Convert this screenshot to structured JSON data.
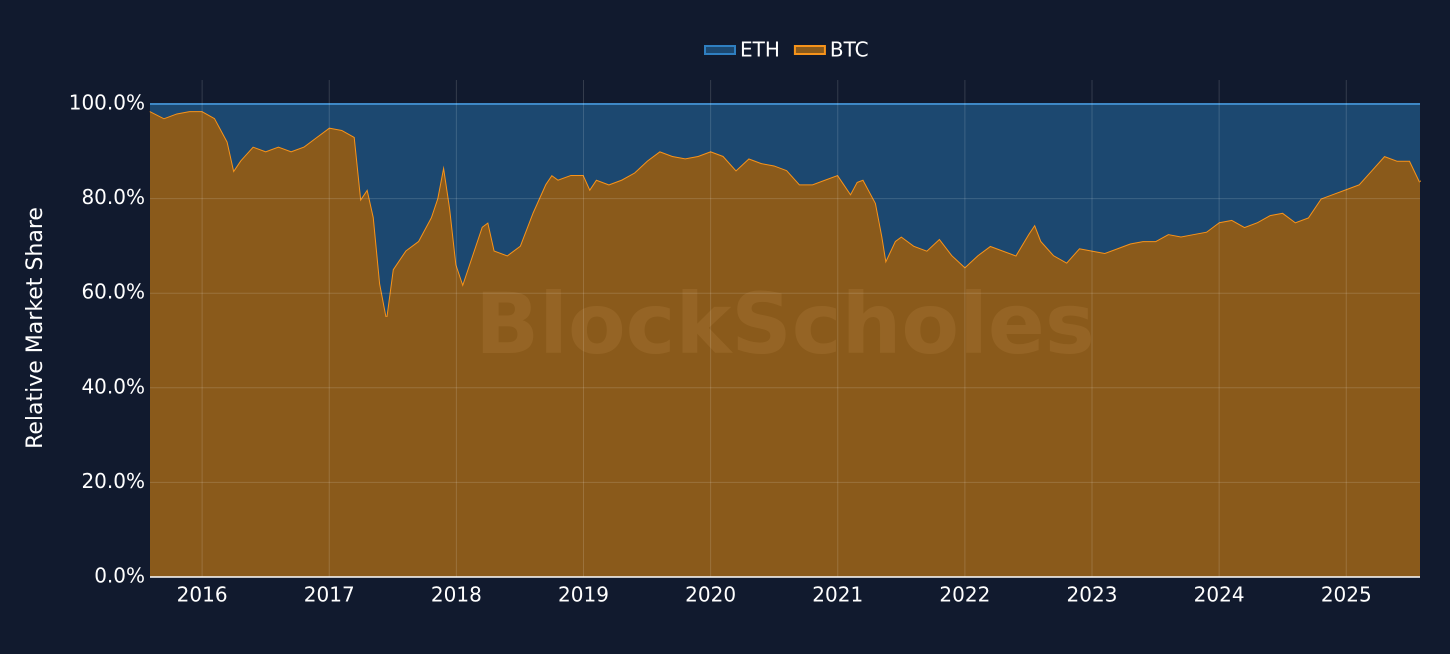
{
  "chart_data": {
    "type": "stacked_area",
    "y_label": "Relative Market Share",
    "watermark": "BlockScholes",
    "legend": "top",
    "grid": true,
    "xlim": [
      2015.59,
      2025.58
    ],
    "xticks": [
      2016,
      2017,
      2018,
      2019,
      2020,
      2021,
      2022,
      2023,
      2024,
      2025
    ],
    "ylim": [
      0,
      100
    ],
    "yticks": [
      {
        "value": 0,
        "label": "0.0%"
      },
      {
        "value": 20,
        "label": "20.0%"
      },
      {
        "value": 40,
        "label": "40.0%"
      },
      {
        "value": 60,
        "label": "60.0%"
      },
      {
        "value": 80,
        "label": "80.0%"
      },
      {
        "value": 100,
        "label": "100.0%"
      }
    ],
    "x": [
      2015.59,
      2015.7,
      2015.8,
      2015.9,
      2016.0,
      2016.1,
      2016.2,
      2016.25,
      2016.3,
      2016.4,
      2016.5,
      2016.6,
      2016.7,
      2016.8,
      2016.9,
      2017.0,
      2017.1,
      2017.2,
      2017.25,
      2017.3,
      2017.35,
      2017.4,
      2017.45,
      2017.5,
      2017.6,
      2017.7,
      2017.8,
      2017.85,
      2017.9,
      2017.95,
      2018.0,
      2018.05,
      2018.1,
      2018.2,
      2018.25,
      2018.3,
      2018.4,
      2018.5,
      2018.6,
      2018.7,
      2018.75,
      2018.8,
      2018.9,
      2019.0,
      2019.05,
      2019.1,
      2019.2,
      2019.3,
      2019.4,
      2019.5,
      2019.6,
      2019.7,
      2019.8,
      2019.9,
      2020.0,
      2020.1,
      2020.2,
      2020.3,
      2020.4,
      2020.5,
      2020.6,
      2020.7,
      2020.8,
      2020.9,
      2021.0,
      2021.05,
      2021.1,
      2021.15,
      2021.2,
      2021.3,
      2021.35,
      2021.38,
      2021.45,
      2021.5,
      2021.6,
      2021.7,
      2021.8,
      2021.9,
      2022.0,
      2022.1,
      2022.2,
      2022.3,
      2022.4,
      2022.5,
      2022.55,
      2022.6,
      2022.7,
      2022.8,
      2022.9,
      2023.0,
      2023.1,
      2023.2,
      2023.3,
      2023.4,
      2023.5,
      2023.6,
      2023.7,
      2023.8,
      2023.9,
      2024.0,
      2024.1,
      2024.2,
      2024.3,
      2024.4,
      2024.5,
      2024.6,
      2024.7,
      2024.8,
      2024.9,
      2025.0,
      2025.1,
      2025.2,
      2025.3,
      2025.4,
      2025.5,
      2025.58
    ],
    "series": [
      {
        "name": "BTC",
        "color": "#f7931a",
        "fill": "#8a5a1b",
        "values": [
          98.5,
          97,
          98,
          98.5,
          98.5,
          97,
          92,
          86,
          88,
          91,
          90,
          91,
          90,
          91,
          93,
          95,
          94.5,
          93,
          80,
          82,
          76,
          62,
          55,
          65,
          69,
          71,
          76,
          80,
          87,
          78,
          66,
          62,
          66,
          74,
          75,
          69,
          68,
          70,
          77,
          83,
          85,
          84,
          85,
          85,
          82,
          84,
          83,
          84,
          85.5,
          88,
          90,
          89,
          88.5,
          89,
          90,
          89,
          86,
          88.5,
          87.5,
          87,
          86,
          83,
          83,
          84,
          85,
          83,
          81,
          83.5,
          84,
          79,
          72,
          67,
          71,
          72,
          70,
          69,
          71.5,
          68,
          65.5,
          68,
          70,
          69,
          68,
          72.5,
          74.5,
          71,
          68,
          66.5,
          69.5,
          69,
          68.5,
          69.5,
          70.5,
          71,
          71,
          72.5,
          72,
          72.5,
          73,
          75,
          75.5,
          74,
          75,
          76.5,
          77,
          75,
          76,
          80,
          81,
          82,
          83,
          86,
          89,
          88,
          88,
          83.5
        ]
      },
      {
        "name": "ETH",
        "color": "#2f7fc1",
        "fill": "#1c4870",
        "values": [
          1.5,
          3,
          2,
          1.5,
          1.5,
          3,
          8,
          14,
          12,
          9,
          10,
          9,
          10,
          9,
          7,
          5,
          5.5,
          7,
          20,
          18,
          24,
          38,
          45,
          35,
          31,
          29,
          24,
          20,
          13,
          22,
          34,
          38,
          34,
          26,
          25,
          31,
          32,
          30,
          23,
          17,
          15,
          16,
          15,
          15,
          18,
          16,
          17,
          16,
          14.5,
          12,
          10,
          11,
          11.5,
          11,
          10,
          11,
          14,
          11.5,
          12.5,
          13,
          14,
          17,
          17,
          16,
          15,
          17,
          19,
          16.5,
          16,
          21,
          28,
          33,
          29,
          28,
          30,
          31,
          28.5,
          32,
          34.5,
          32,
          30,
          31,
          32,
          27.5,
          25.5,
          29,
          32,
          33.5,
          30.5,
          31,
          31.5,
          30.5,
          29.5,
          29,
          29,
          27.5,
          28,
          27.5,
          27,
          25,
          24.5,
          26,
          25,
          23.5,
          23,
          25,
          24,
          20,
          19,
          18,
          17,
          14,
          11,
          12,
          12,
          16.5
        ]
      }
    ]
  }
}
